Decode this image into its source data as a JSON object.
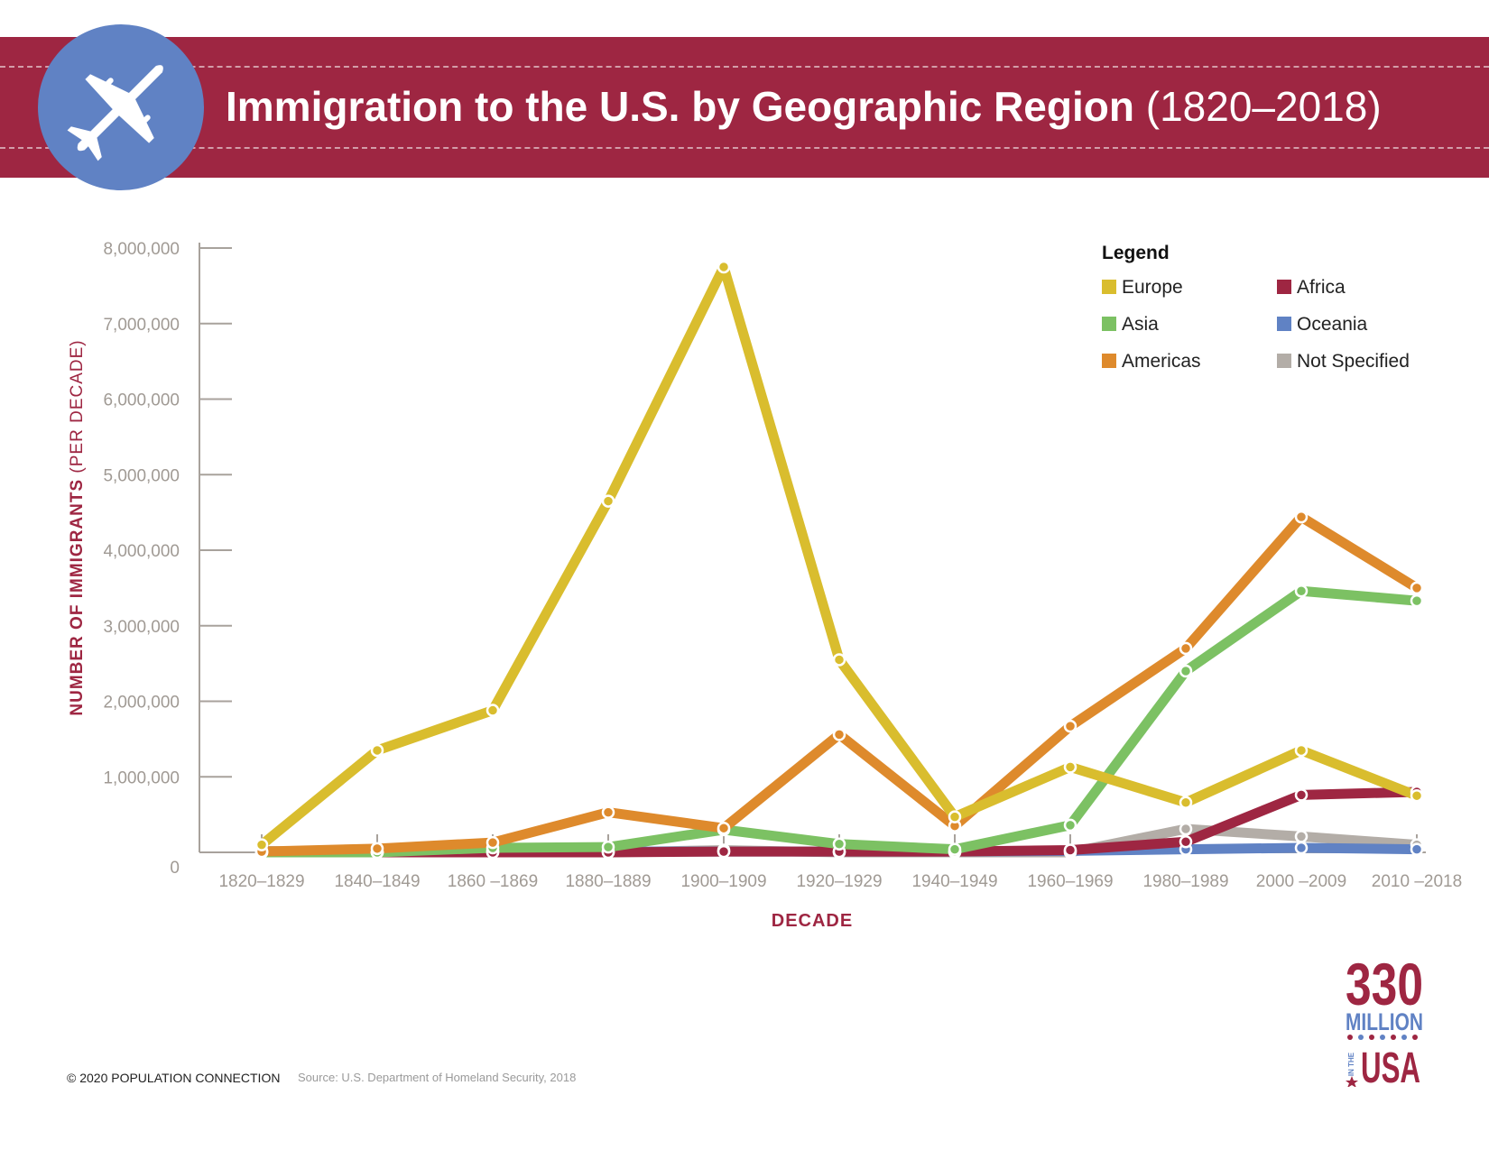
{
  "header": {
    "title_main": "Immigration to the U.S. by Geographic Region",
    "title_years": "(1820–2018)",
    "icon": "airplane-icon"
  },
  "legend": {
    "title": "Legend"
  },
  "footer": {
    "copyright": "© 2020 POPULATION CONNECTION",
    "source": "Source: U.S. Department of Homeland Security, 2018"
  },
  "logo": {
    "number": "330",
    "word": "MILLION",
    "small": "IN THE",
    "country": "USA"
  },
  "colors": {
    "banner": "#9e2642",
    "plane_circle": "#6082c4",
    "axis_label": "#9e2642",
    "tick_label": "#a09a94",
    "Europe": "#d9bd2e",
    "Asia": "#7cc163",
    "Americas": "#de8a2c",
    "Africa": "#9e2642",
    "Oceania": "#6082c4",
    "Not Specified": "#b3ada7"
  },
  "chart_data": {
    "type": "line",
    "title": "Immigration to the U.S. by Geographic Region (1820–2018)",
    "xlabel": "DECADE",
    "ylabel_bold": "NUMBER OF IMMIGRANTS",
    "ylabel_light": "(PER DECADE)",
    "categories": [
      "1820–1829",
      "1840–1849",
      "1860 –1869",
      "1880–1889",
      "1900–1909",
      "1920–1929",
      "1940–1949",
      "1960–1969",
      "1980–1989",
      "2000 –2009",
      "2010 –2018"
    ],
    "ylim": [
      0,
      8000000
    ],
    "yticks": [
      0,
      1000000,
      2000000,
      3000000,
      4000000,
      5000000,
      6000000,
      7000000,
      8000000
    ],
    "ytick_labels": [
      "0",
      "1,000,000",
      "2,000,000",
      "3,000,000",
      "4,000,000",
      "5,000,000",
      "6,000,000",
      "7,000,000",
      "8,000,000"
    ],
    "grid": false,
    "legend_position": "top-right",
    "series": [
      {
        "name": "Not Specified",
        "values": [
          20000,
          0,
          20000,
          0,
          30000,
          0,
          0,
          0,
          310000,
          210000,
          100000
        ]
      },
      {
        "name": "Oceania",
        "values": [
          0,
          0,
          0,
          10000,
          10000,
          10000,
          10000,
          20000,
          40000,
          60000,
          40000
        ]
      },
      {
        "name": "Africa",
        "values": [
          0,
          0,
          0,
          0,
          10000,
          10000,
          10000,
          30000,
          140000,
          760000,
          800000
        ]
      },
      {
        "name": "Asia",
        "values": [
          0,
          0,
          60000,
          70000,
          300000,
          110000,
          40000,
          360000,
          2400000,
          3460000,
          3330000
        ]
      },
      {
        "name": "Americas",
        "values": [
          10000,
          50000,
          130000,
          530000,
          320000,
          1560000,
          350000,
          1670000,
          2700000,
          4440000,
          3500000
        ]
      },
      {
        "name": "Europe",
        "values": [
          100000,
          1350000,
          1880000,
          4650000,
          7750000,
          2550000,
          470000,
          1130000,
          660000,
          1350000,
          750000
        ]
      }
    ]
  }
}
